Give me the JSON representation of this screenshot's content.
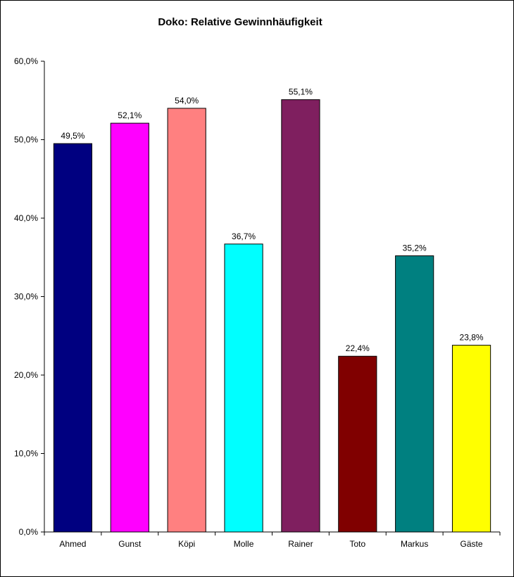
{
  "chart_data": {
    "type": "bar",
    "title": "Doko: Relative Gewinnhäufigkeit",
    "categories": [
      "Ahmed",
      "Gunst",
      "Köpi",
      "Molle",
      "Rainer",
      "Toto",
      "Markus",
      "Gäste"
    ],
    "values": [
      49.5,
      52.1,
      54.0,
      36.7,
      55.1,
      22.4,
      35.2,
      23.8
    ],
    "value_labels": [
      "49,5%",
      "52,1%",
      "54,0%",
      "36,7%",
      "55,1%",
      "22,4%",
      "35,2%",
      "23,8%"
    ],
    "colors": [
      "#000080",
      "#ff00ff",
      "#ff8080",
      "#00ffff",
      "#7f1f5f",
      "#800000",
      "#008080",
      "#ffff00"
    ],
    "ylim": [
      0,
      60
    ],
    "yticks": [
      0,
      10,
      20,
      30,
      40,
      50,
      60
    ],
    "ytick_labels": [
      "0,0%",
      "10,0%",
      "20,0%",
      "30,0%",
      "40,0%",
      "50,0%",
      "60,0%"
    ],
    "xlabel": "",
    "ylabel": "",
    "grid": false,
    "legend": "none"
  }
}
